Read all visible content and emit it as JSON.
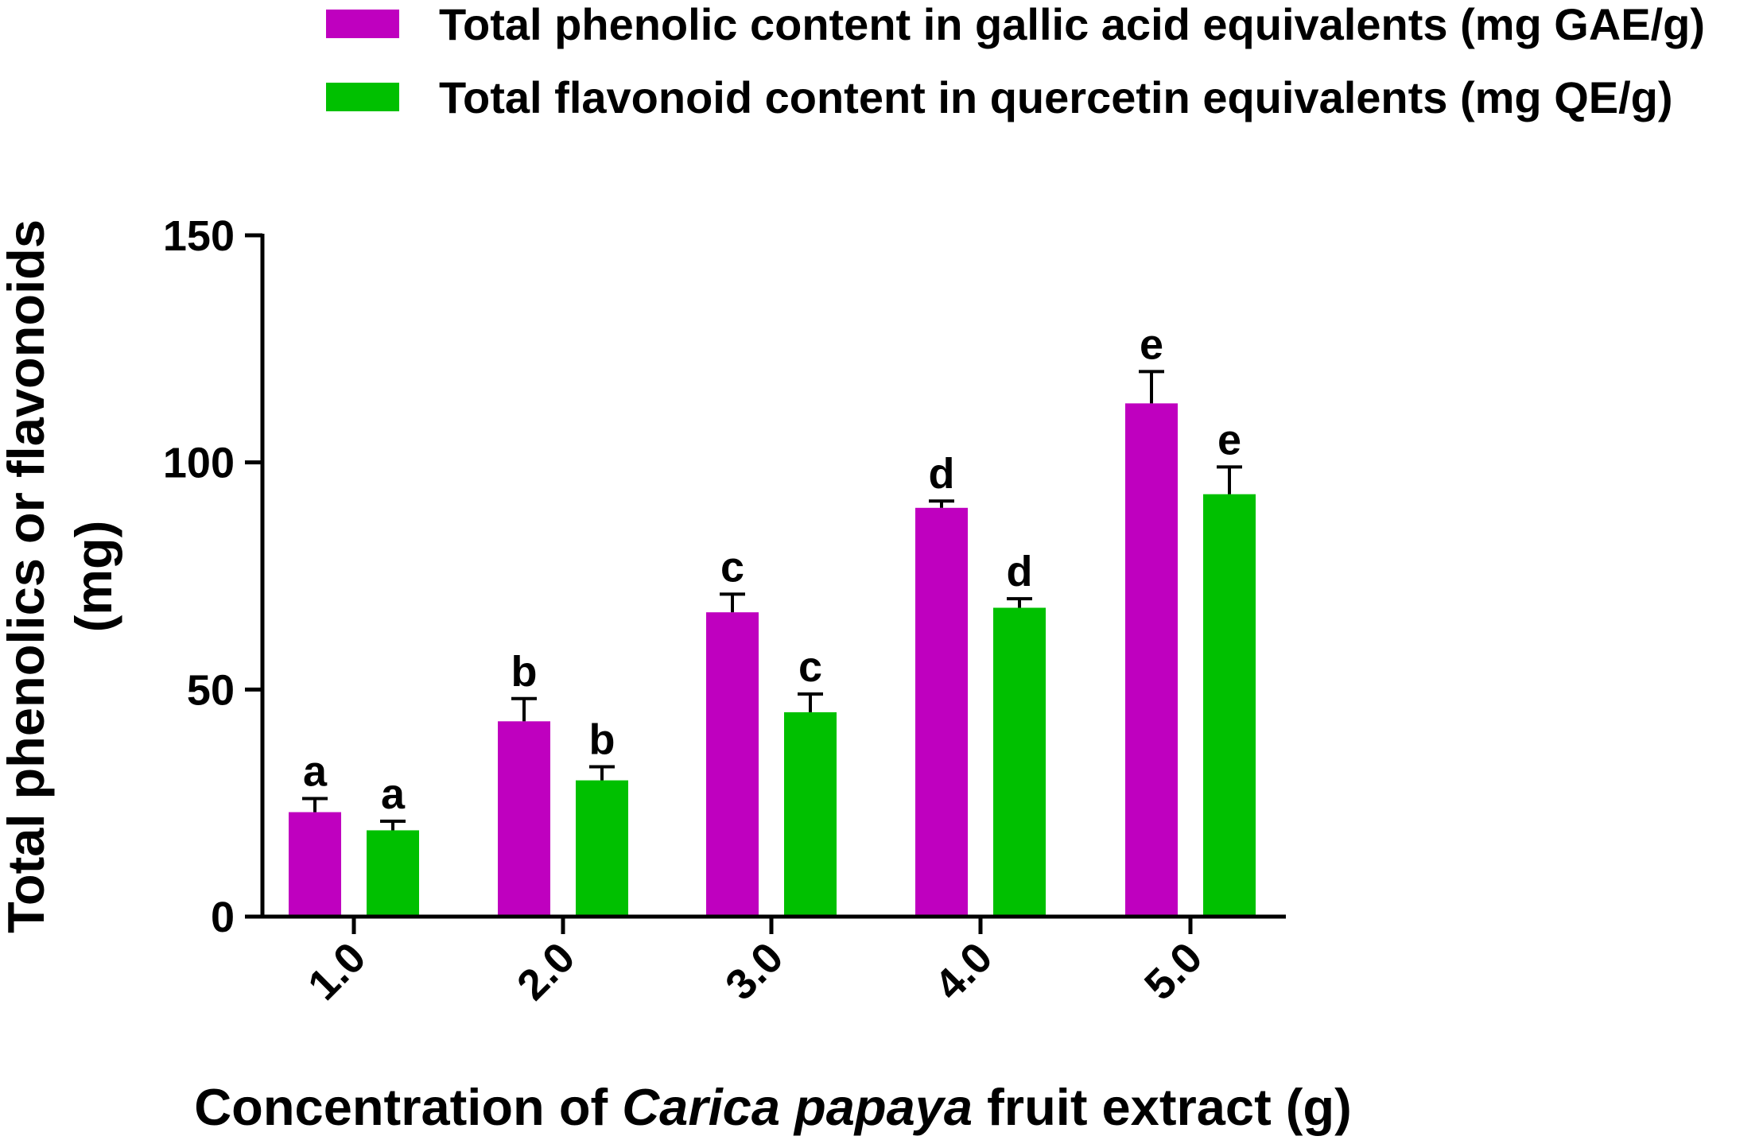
{
  "chart_data": {
    "type": "bar",
    "categories": [
      "1.0",
      "2.0",
      "3.0",
      "4.0",
      "5.0"
    ],
    "series": [
      {
        "name": "Total phenolic content in gallic acid equivalents (mg GAE/g)",
        "color": "#bf00bf",
        "values": [
          23,
          43,
          67,
          90,
          113
        ],
        "errors": [
          3,
          5,
          4,
          1.5,
          7
        ],
        "letters": [
          "a",
          "b",
          "c",
          "d",
          "e"
        ]
      },
      {
        "name": "Total flavonoid content in quercetin equivalents (mg QE/g)",
        "color": "#00c000",
        "values": [
          19,
          30,
          45,
          68,
          93
        ],
        "errors": [
          2,
          3,
          4,
          2,
          6
        ],
        "letters": [
          "a",
          "b",
          "c",
          "d",
          "e"
        ]
      }
    ],
    "ylabel_line1": "Total phenolics or flavonoids",
    "ylabel_line2": "(mg)",
    "xlabel_pre": "Concentration of ",
    "xlabel_italic": "Carica papaya",
    "xlabel_post": " fruit extract (g)",
    "ylim": [
      0,
      150
    ],
    "yticks": [
      0,
      50,
      100,
      150
    ],
    "legend_position": "top"
  }
}
